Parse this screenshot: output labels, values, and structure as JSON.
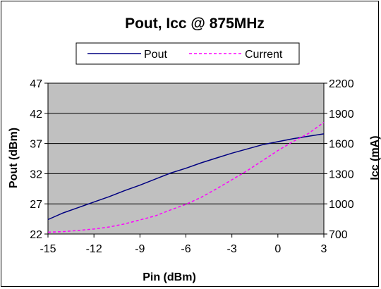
{
  "chart_data": {
    "type": "line",
    "title": "Pout, Icc @ 875MHz",
    "xlabel": "Pin  (dBm)",
    "ylabel": "Pout (dBm)",
    "y2label": "Icc (mA)",
    "xlim": [
      -15,
      3
    ],
    "ylim": [
      22,
      47
    ],
    "y2lim": [
      700,
      2200
    ],
    "x_ticks": [
      "-15",
      "-12",
      "-9",
      "-6",
      "-3",
      "0",
      "3"
    ],
    "y_ticks": [
      "22",
      "27",
      "32",
      "37",
      "42",
      "47"
    ],
    "y2_ticks": [
      "700",
      "1000",
      "1300",
      "1600",
      "1900",
      "2200"
    ],
    "grid": "horizontal",
    "plot_background": "#c0c0c0",
    "legend_position": "top",
    "series": [
      {
        "name": "Pout",
        "axis": "left",
        "style": "solid",
        "color": "#000080",
        "x": [
          -15,
          -14,
          -13,
          -12,
          -11,
          -10,
          -9,
          -8,
          -7,
          -6,
          -5,
          -4,
          -3,
          -2,
          -1,
          0,
          1,
          2,
          3
        ],
        "values": [
          24.4,
          25.5,
          26.4,
          27.3,
          28.2,
          29.2,
          30.1,
          31.1,
          32.1,
          32.9,
          33.8,
          34.6,
          35.4,
          36.1,
          36.8,
          37.3,
          37.8,
          38.2,
          38.6
        ]
      },
      {
        "name": "Current",
        "axis": "right",
        "style": "dashed",
        "color": "#ff00ff",
        "x": [
          -15,
          -14,
          -13,
          -12,
          -11,
          -10,
          -9,
          -8,
          -7,
          -6,
          -5,
          -4,
          -3,
          -2,
          -1,
          0,
          1,
          2,
          3
        ],
        "values": [
          718,
          724,
          736,
          750,
          770,
          800,
          840,
          880,
          940,
          995,
          1065,
          1150,
          1240,
          1330,
          1430,
          1530,
          1620,
          1700,
          1810
        ]
      }
    ]
  }
}
